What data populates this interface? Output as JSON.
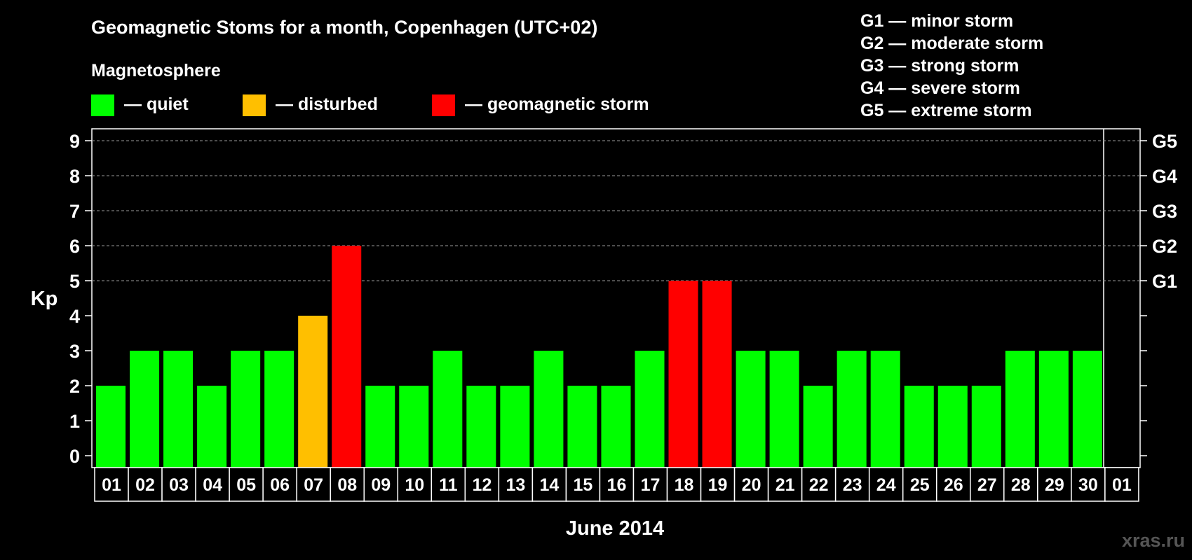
{
  "title": "Geomagnetic Stoms for a month, Copenhagen (UTC+02)",
  "legend": {
    "heading": "Magnetosphere",
    "items": [
      {
        "label": "— quiet",
        "color": "#00ff00"
      },
      {
        "label": "— disturbed",
        "color": "#ffbf00"
      },
      {
        "label": "— geomagnetic storm",
        "color": "#ff0000"
      }
    ]
  },
  "g_scale": [
    "G1 — minor storm",
    "G2 — moderate storm",
    "G3 — strong storm",
    "G4 — severe storm",
    "G5 — extreme storm"
  ],
  "watermark": "xras.ru",
  "chart_data": {
    "type": "bar",
    "title": "Geomagnetic Stoms for a month, Copenhagen (UTC+02)",
    "ylabel": "Kp",
    "xlabel": "June 2014",
    "ylim": [
      0,
      9
    ],
    "yticks": [
      "0",
      "1",
      "2",
      "3",
      "4",
      "5",
      "6",
      "7",
      "8",
      "9"
    ],
    "right_ticks": [
      {
        "kp": 5,
        "label": "G1"
      },
      {
        "kp": 6,
        "label": "G2"
      },
      {
        "kp": 7,
        "label": "G3"
      },
      {
        "kp": 8,
        "label": "G4"
      },
      {
        "kp": 9,
        "label": "G5"
      }
    ],
    "grid": "dashed horizontal at Kp 5-9",
    "categories": [
      "01",
      "02",
      "03",
      "04",
      "05",
      "06",
      "07",
      "08",
      "09",
      "10",
      "11",
      "12",
      "13",
      "14",
      "15",
      "16",
      "17",
      "18",
      "19",
      "20",
      "21",
      "22",
      "23",
      "24",
      "25",
      "26",
      "27",
      "28",
      "29",
      "30",
      "01"
    ],
    "values": [
      2,
      3,
      3,
      2,
      3,
      3,
      4,
      6,
      2,
      2,
      3,
      2,
      2,
      3,
      2,
      2,
      3,
      5,
      5,
      3,
      3,
      2,
      3,
      3,
      2,
      2,
      2,
      3,
      3,
      3,
      null
    ],
    "status": [
      "quiet",
      "quiet",
      "quiet",
      "quiet",
      "quiet",
      "quiet",
      "disturbed",
      "storm",
      "quiet",
      "quiet",
      "quiet",
      "quiet",
      "quiet",
      "quiet",
      "quiet",
      "quiet",
      "quiet",
      "storm",
      "storm",
      "quiet",
      "quiet",
      "quiet",
      "quiet",
      "quiet",
      "quiet",
      "quiet",
      "quiet",
      "quiet",
      "quiet",
      "quiet",
      null
    ],
    "colors": {
      "quiet": "#00ff00",
      "disturbed": "#ffbf00",
      "storm": "#ff0000"
    }
  }
}
